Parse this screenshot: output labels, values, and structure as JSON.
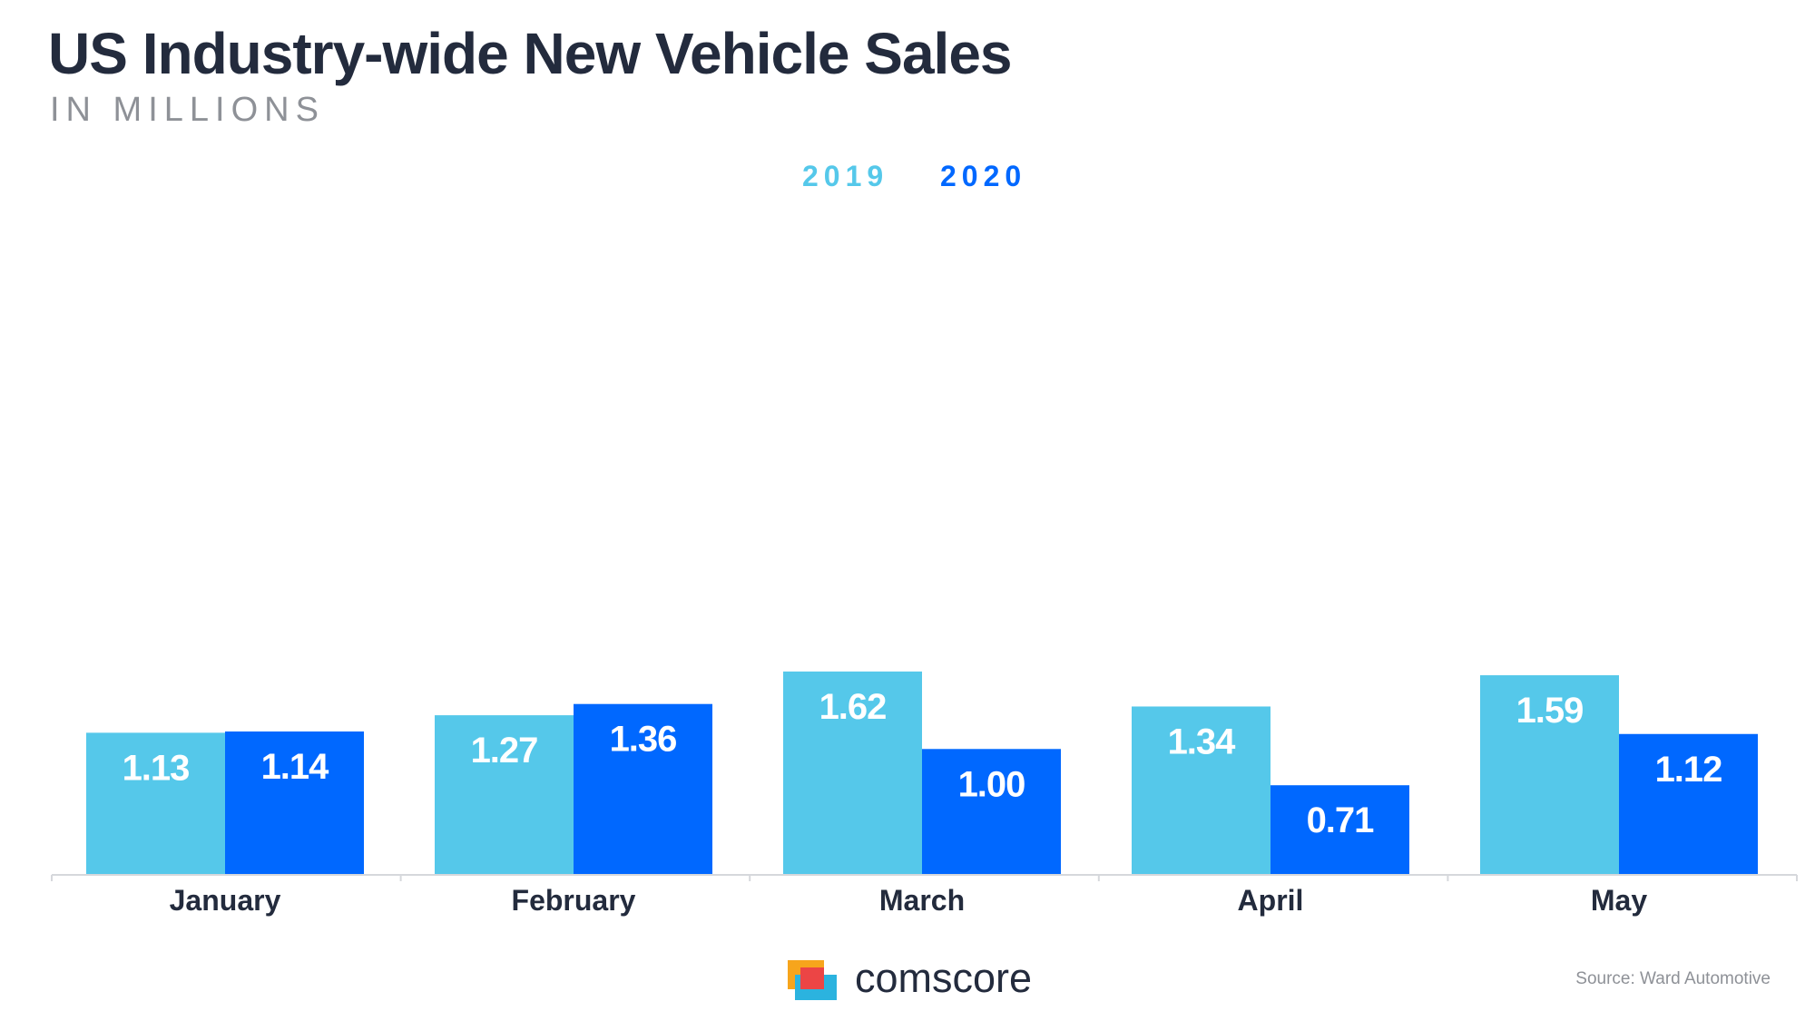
{
  "chart_data": {
    "type": "bar",
    "title": "US Industry-wide New Vehicle Sales",
    "subtitle": "IN MILLIONS",
    "categories": [
      "January",
      "February",
      "March",
      "April",
      "May"
    ],
    "series": [
      {
        "name": "2019",
        "color": "#55c8ea",
        "values": [
          1.13,
          1.27,
          1.62,
          1.34,
          1.59
        ],
        "labels": [
          "1.13",
          "1.27",
          "1.62",
          "1.34",
          "1.59"
        ]
      },
      {
        "name": "2020",
        "color": "#0068ff",
        "values": [
          1.14,
          1.36,
          1.0,
          0.71,
          1.12
        ],
        "labels": [
          "1.14",
          "1.36",
          "1.00",
          "0.71",
          "1.12"
        ]
      }
    ],
    "ylim": [
      0,
      5.25
    ],
    "grid": false,
    "legend_position": "top-center",
    "data_labels": "inside-top, white",
    "xlabel": "",
    "ylabel": ""
  },
  "logo": {
    "text": "comscore"
  },
  "source_note": "Source: Ward Automotive",
  "colors": {
    "title": "#232b3d",
    "subtitle": "#8e9197",
    "axis": "#d6d8dc",
    "label_on_bar": "#ffffff",
    "logo_orange": "#f7a51c",
    "logo_red": "#ec4545",
    "logo_blue": "#2bb3df"
  }
}
